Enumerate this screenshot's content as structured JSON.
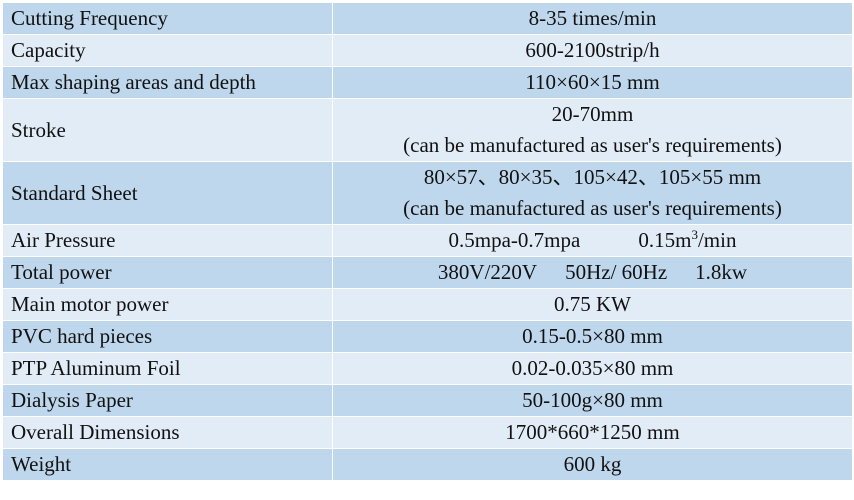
{
  "table": {
    "rows": [
      {
        "label": "Cutting Frequency",
        "value": "8-35 times/min"
      },
      {
        "label": "Capacity",
        "value": "600-2100strip/h"
      },
      {
        "label": "Max shaping areas and depth",
        "value": "110×60×15 mm"
      },
      {
        "label": "Stroke",
        "value_line1": "20-70mm",
        "value_line2": "(can be manufactured as user's requirements)"
      },
      {
        "label": "Standard Sheet",
        "value_line1": "80×57、80×35、105×42、105×55 mm",
        "value_line2": "(can be manufactured as user's requirements)"
      },
      {
        "label": "Air Pressure",
        "value_part1": "0.5mpa-0.7mpa",
        "value_part2_pre": "0.15m",
        "value_part2_sup": "3",
        "value_part2_post": "/min"
      },
      {
        "label": "Total power",
        "value_part1": "380V/220V",
        "value_part2": "50Hz/ 60Hz",
        "value_part3": "1.8kw"
      },
      {
        "label": "Main motor power",
        "value": "0.75 KW"
      },
      {
        "label": "PVC hard pieces",
        "value": "0.15-0.5×80 mm"
      },
      {
        "label": "PTP Aluminum Foil",
        "value": "0.02-0.035×80 mm"
      },
      {
        "label": "Dialysis Paper",
        "value": "50-100g×80 mm"
      },
      {
        "label": "Overall Dimensions",
        "value": "1700*660*1250 mm"
      },
      {
        "label": "Weight",
        "value": "600 kg"
      }
    ]
  },
  "colors": {
    "row_dark": "#bfd7ec",
    "row_light": "#e2ecf7",
    "border": "#ffffff",
    "text": "#111111"
  }
}
